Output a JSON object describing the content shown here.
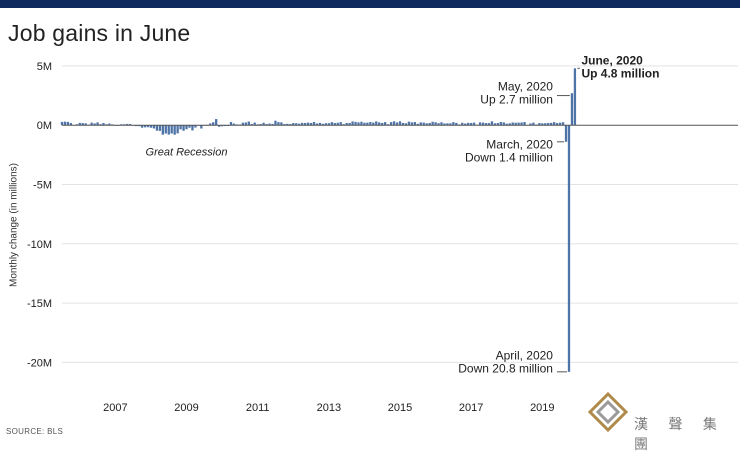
{
  "header": {
    "strip_text": ""
  },
  "title": "Job gains in June",
  "source": "SOURCE: BLS",
  "watermark": {
    "text": "漢 聲 集 團",
    "icon": "diamond-logo-icon"
  },
  "chart_data": {
    "type": "bar",
    "title": "Job gains in June",
    "xlabel": "",
    "ylabel": "Monthly change (in millions)",
    "ylim": [
      -22.5,
      5.5
    ],
    "xlim": [
      2006.0,
      2025.0
    ],
    "yticks": [
      {
        "value": 5,
        "label": "5M"
      },
      {
        "value": 0,
        "label": "0M"
      },
      {
        "value": -5,
        "label": "-5M"
      },
      {
        "value": -10,
        "label": "-10M"
      },
      {
        "value": -15,
        "label": "-15M"
      },
      {
        "value": -20,
        "label": "-20M"
      }
    ],
    "xticks": [
      {
        "value": 2007.5,
        "label": "2007"
      },
      {
        "value": 2009.5,
        "label": "2009"
      },
      {
        "value": 2011.5,
        "label": "2011"
      },
      {
        "value": 2013.5,
        "label": "2013"
      },
      {
        "value": 2015.5,
        "label": "2015"
      },
      {
        "value": 2017.5,
        "label": "2017"
      },
      {
        "value": 2019.5,
        "label": "2019"
      }
    ],
    "grid": true,
    "bar_color": "#4f74a8",
    "start": "2006-01",
    "values": [
      0.28,
      0.3,
      0.28,
      0.18,
      0.02,
      0.08,
      0.2,
      0.18,
      0.16,
      0.05,
      0.22,
      0.15,
      0.24,
      0.09,
      0.19,
      0.08,
      0.14,
      0.07,
      -0.03,
      -0.03,
      0.08,
      0.08,
      0.11,
      0.1,
      0.01,
      -0.08,
      -0.08,
      -0.21,
      -0.18,
      -0.17,
      -0.21,
      -0.27,
      -0.46,
      -0.48,
      -0.8,
      -0.7,
      -0.79,
      -0.7,
      -0.8,
      -0.69,
      -0.35,
      -0.47,
      -0.34,
      -0.21,
      -0.44,
      -0.2,
      0.01,
      -0.28,
      0.01,
      -0.04,
      0.15,
      0.25,
      0.52,
      -0.13,
      -0.09,
      -0.07,
      -0.06,
      0.27,
      0.14,
      0.07,
      0.06,
      0.21,
      0.23,
      0.31,
      0.11,
      0.22,
      0.08,
      0.1,
      0.21,
      0.1,
      0.14,
      0.11,
      0.38,
      0.26,
      0.24,
      0.1,
      0.12,
      0.1,
      0.18,
      0.17,
      0.13,
      0.2,
      0.19,
      0.22,
      0.19,
      0.27,
      0.14,
      0.2,
      0.12,
      0.17,
      0.17,
      0.26,
      0.19,
      0.21,
      0.26,
      0.09,
      0.19,
      0.19,
      0.32,
      0.28,
      0.24,
      0.29,
      0.21,
      0.22,
      0.27,
      0.22,
      0.32,
      0.24,
      0.19,
      0.26,
      0.08,
      0.26,
      0.33,
      0.23,
      0.33,
      0.19,
      0.16,
      0.3,
      0.24,
      0.27,
      0.12,
      0.24,
      0.22,
      0.16,
      0.19,
      0.29,
      0.25,
      0.17,
      0.25,
      0.15,
      0.16,
      0.16,
      0.26,
      0.2,
      0.07,
      0.21,
      0.14,
      0.2,
      0.19,
      0.22,
      0.04,
      0.24,
      0.22,
      0.18,
      0.18,
      0.33,
      0.16,
      0.18,
      0.27,
      0.24,
      0.13,
      0.16,
      0.23,
      0.21,
      0.22,
      0.23,
      0.27,
      0.02,
      0.15,
      0.22,
      0.06,
      0.18,
      0.16,
      0.17,
      0.19,
      0.2,
      0.26,
      0.18,
      0.21,
      0.25,
      -1.4,
      -20.8,
      2.7,
      4.8
    ],
    "annotations": [
      {
        "text": "Great Recession",
        "style": "italic",
        "x": 2009.5,
        "y": -2.2
      },
      {
        "lines": [
          "March, 2020",
          "Down 1.4 million"
        ],
        "x": 2020.17,
        "y": -1.4,
        "label_at": [
          2019.8,
          -2.3
        ]
      },
      {
        "lines": [
          "April, 2020",
          "Down 20.8 million"
        ],
        "x": 2020.25,
        "y": -20.8,
        "label_at": [
          2019.8,
          -20.1
        ]
      },
      {
        "lines": [
          "May, 2020",
          "Up 2.7 million"
        ],
        "x": 2020.33,
        "y": 2.5,
        "label_at": [
          2019.8,
          2.6
        ]
      },
      {
        "lines": [
          "June, 2020",
          "Up 4.8 million"
        ],
        "bold": true,
        "x": 2020.5,
        "y": 4.8,
        "label_at": [
          2020.6,
          4.8
        ]
      }
    ]
  }
}
